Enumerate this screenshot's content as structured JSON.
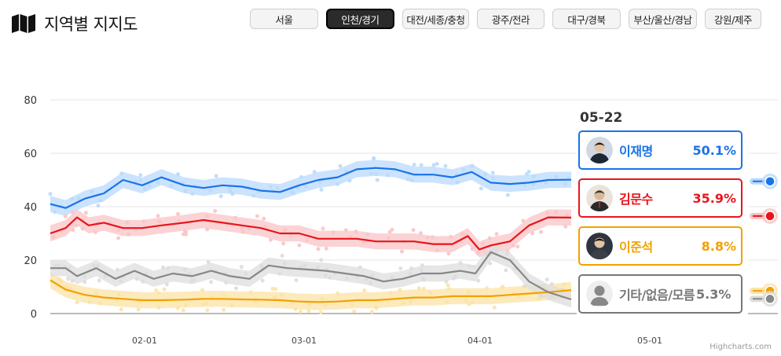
{
  "header": {
    "title": "지역별 지지도"
  },
  "tabs": [
    {
      "label": "서울",
      "active": false
    },
    {
      "label": "인천/경기",
      "active": true
    },
    {
      "label": "대전/세종/충청",
      "active": false
    },
    {
      "label": "광주/전라",
      "active": false
    },
    {
      "label": "대구/경북",
      "active": false
    },
    {
      "label": "부산/울산/경남",
      "active": false
    },
    {
      "label": "강원/제주",
      "active": false
    }
  ],
  "tooltip": {
    "date": "05-22",
    "items": [
      {
        "name": "이재명",
        "value": "50.1%",
        "color": "#1a73e8"
      },
      {
        "name": "김문수",
        "value": "35.9%",
        "color": "#e8151b"
      },
      {
        "name": "이준석",
        "value": "8.8%",
        "color": "#f2a100"
      },
      {
        "name": "기타/없음/모름",
        "value": "5.3%",
        "color": "#777777"
      }
    ]
  },
  "credit": "Highcharts.com",
  "chart_data": {
    "type": "line",
    "xlabel": "",
    "ylabel": "",
    "ylim": [
      0,
      80
    ],
    "yticks": [
      0,
      20,
      40,
      60,
      80
    ],
    "grid": true,
    "x_ticks": [
      "02-01",
      "03-01",
      "04-01",
      "05-01"
    ],
    "x_domain": [
      "2025-01-06",
      "2025-05-22"
    ],
    "legend": "tooltip",
    "series": [
      {
        "name": "이재명",
        "color": "#1a73e8",
        "band": "#b9dafc",
        "x": [
          "2025-01-06",
          "2025-01-10",
          "2025-01-15",
          "2025-01-20",
          "2025-01-25",
          "2025-01-30",
          "2025-02-04",
          "2025-02-10",
          "2025-02-15",
          "2025-02-20",
          "2025-02-25",
          "2025-03-02",
          "2025-03-07",
          "2025-03-12",
          "2025-03-17",
          "2025-03-22",
          "2025-03-27",
          "2025-04-01",
          "2025-04-06",
          "2025-04-11",
          "2025-04-16",
          "2025-04-21",
          "2025-04-26",
          "2025-05-01",
          "2025-05-06",
          "2025-05-11",
          "2025-05-16",
          "2025-05-22"
        ],
        "values": [
          41,
          39.5,
          43,
          45,
          50,
          48,
          51,
          48,
          47,
          48,
          47.5,
          46,
          45.5,
          48,
          50,
          51,
          54,
          54.5,
          54,
          52,
          52,
          51,
          53,
          49,
          48.5,
          49,
          50,
          50.1
        ]
      },
      {
        "name": "김문수",
        "color": "#e8151b",
        "band": "#f9c4c6",
        "x": [
          "2025-01-06",
          "2025-01-10",
          "2025-01-13",
          "2025-01-16",
          "2025-01-20",
          "2025-01-25",
          "2025-01-30",
          "2025-02-04",
          "2025-02-10",
          "2025-02-15",
          "2025-02-20",
          "2025-02-25",
          "2025-03-02",
          "2025-03-07",
          "2025-03-12",
          "2025-03-17",
          "2025-03-22",
          "2025-03-27",
          "2025-04-01",
          "2025-04-06",
          "2025-04-11",
          "2025-04-16",
          "2025-04-21",
          "2025-04-25",
          "2025-04-28",
          "2025-05-01",
          "2025-05-06",
          "2025-05-11",
          "2025-05-16",
          "2025-05-22"
        ],
        "values": [
          30,
          32,
          36,
          33,
          34,
          32,
          32,
          33,
          34,
          35,
          34,
          33,
          32,
          30,
          30,
          28,
          28,
          28,
          27,
          27,
          27,
          26,
          26,
          29,
          24,
          25.5,
          27,
          33,
          36,
          35.9
        ]
      },
      {
        "name": "이준석",
        "color": "#f2a100",
        "band": "#fbe3a6",
        "x": [
          "2025-01-06",
          "2025-01-10",
          "2025-01-15",
          "2025-01-20",
          "2025-01-25",
          "2025-01-30",
          "2025-02-04",
          "2025-02-10",
          "2025-02-15",
          "2025-02-20",
          "2025-02-25",
          "2025-03-02",
          "2025-03-07",
          "2025-03-12",
          "2025-03-17",
          "2025-03-22",
          "2025-03-27",
          "2025-04-01",
          "2025-04-06",
          "2025-04-11",
          "2025-04-16",
          "2025-04-21",
          "2025-04-26",
          "2025-05-01",
          "2025-05-06",
          "2025-05-11",
          "2025-05-16",
          "2025-05-22"
        ],
        "values": [
          12.5,
          9,
          7,
          6,
          5.5,
          5,
          5,
          5.2,
          5.5,
          5.5,
          5.3,
          5.2,
          5,
          4.5,
          4.3,
          4.5,
          5,
          5,
          5.5,
          6,
          6,
          6.5,
          6.5,
          6.5,
          7,
          7.5,
          8,
          8.8
        ]
      },
      {
        "name": "기타/없음/모름",
        "color": "#888888",
        "band": "#dddddd",
        "x": [
          "2025-01-06",
          "2025-01-10",
          "2025-01-13",
          "2025-01-18",
          "2025-01-23",
          "2025-01-28",
          "2025-02-02",
          "2025-02-07",
          "2025-02-12",
          "2025-02-17",
          "2025-02-22",
          "2025-02-27",
          "2025-03-04",
          "2025-03-09",
          "2025-03-14",
          "2025-03-19",
          "2025-03-24",
          "2025-03-29",
          "2025-04-03",
          "2025-04-08",
          "2025-04-13",
          "2025-04-18",
          "2025-04-23",
          "2025-04-27",
          "2025-05-01",
          "2025-05-06",
          "2025-05-11",
          "2025-05-16",
          "2025-05-22"
        ],
        "values": [
          17,
          17,
          14,
          17,
          13,
          16,
          13,
          15,
          14,
          16,
          14,
          13,
          18,
          17,
          16.5,
          16,
          15,
          14,
          12,
          13,
          15,
          15,
          16,
          15,
          23,
          20,
          12,
          8,
          5.3
        ]
      }
    ]
  }
}
